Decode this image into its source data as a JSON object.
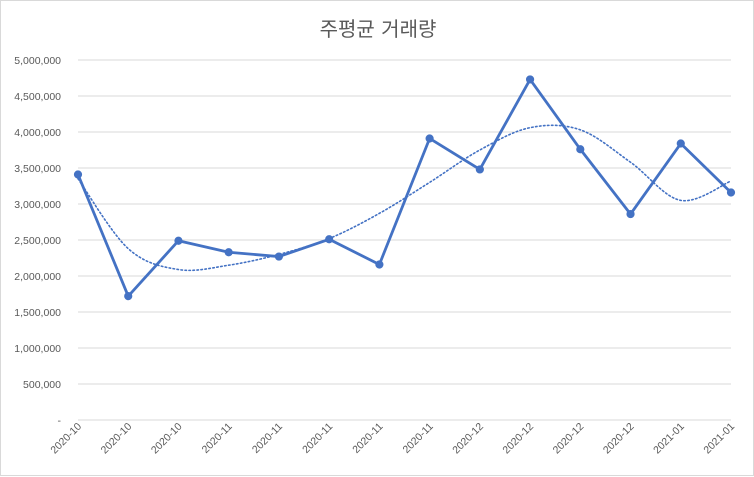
{
  "chart_data": {
    "type": "line",
    "title": "주평균 거래량",
    "categories": [
      "2020-10",
      "2020-10",
      "2020-10",
      "2020-11",
      "2020-11",
      "2020-11",
      "2020-11",
      "2020-11",
      "2020-12",
      "2020-12",
      "2020-12",
      "2020-12",
      "2021-01",
      "2021-01"
    ],
    "series": [
      {
        "values": [
          3410000,
          1720000,
          2490000,
          2330000,
          2270000,
          2510000,
          2160000,
          3910000,
          3480000,
          4730000,
          3760000,
          2860000,
          3840000,
          3160000
        ],
        "color": "#4472c4",
        "style": "solid",
        "markers": true
      },
      {
        "kind": "polynomial-trendline",
        "color": "#4472c4",
        "style": "dotted",
        "values": [
          3350000,
          2380000,
          2090000,
          2150000,
          2300000,
          2520000,
          2870000,
          3300000,
          3750000,
          4060000,
          4030000,
          3580000,
          3050000,
          3320000
        ]
      }
    ],
    "ylim": [
      0,
      5000000
    ],
    "yticks": [
      "-",
      "500,000",
      "1,000,000",
      "1,500,000",
      "2,000,000",
      "2,500,000",
      "3,000,000",
      "3,500,000",
      "4,000,000",
      "4,500,000",
      "5,000,000"
    ],
    "grid": true,
    "legend": "none"
  }
}
